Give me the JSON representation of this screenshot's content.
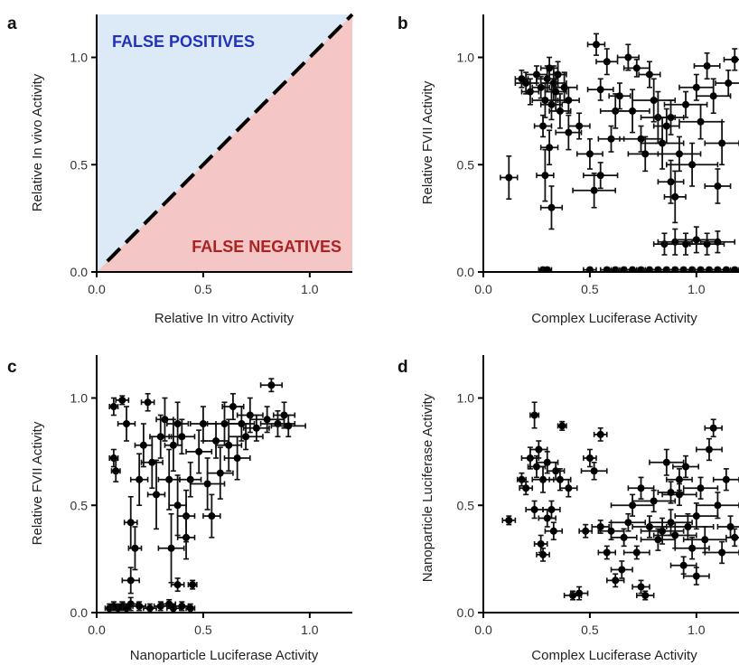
{
  "chart_data": [
    {
      "panel": "a",
      "type": "area",
      "xlabel": "Relative In vitro Activity",
      "ylabel": "Relative In vivo Activity",
      "xlim": [
        0,
        1.2
      ],
      "ylim": [
        0,
        1.2
      ],
      "xticks": [
        "0.0",
        "0.5",
        "1.0"
      ],
      "yticks": [
        "0.0",
        "0.5",
        "1.0"
      ],
      "line": {
        "style": "dashed",
        "x": [
          0.05,
          1.2
        ],
        "y": [
          0.05,
          1.2
        ],
        "color": "#000000"
      },
      "regions": [
        {
          "label": "FALSE POSITIVES",
          "fill": "#dce9f7",
          "text_color": "#2233bb",
          "side": "above-diagonal"
        },
        {
          "label": "FALSE NEGATIVES",
          "fill": "#f5c6c6",
          "text_color": "#aa2222",
          "side": "below-diagonal"
        }
      ]
    },
    {
      "panel": "b",
      "type": "scatter",
      "xlabel": "Complex Luciferase Activity",
      "ylabel": "Relative FVII Activity",
      "xlim": [
        0,
        1.2
      ],
      "ylim": [
        0,
        1.2
      ],
      "xticks": [
        "0.0",
        "0.5",
        "1.0"
      ],
      "yticks": [
        "0.0",
        "0.5",
        "1.0"
      ],
      "error_bars": true,
      "points": [
        [
          0.12,
          0.44,
          0.04,
          0.1
        ],
        [
          0.18,
          0.9,
          0.03,
          0.04
        ],
        [
          0.2,
          0.88,
          0.05,
          0.05
        ],
        [
          0.22,
          0.84,
          0.04,
          0.06
        ],
        [
          0.25,
          0.92,
          0.05,
          0.04
        ],
        [
          0.27,
          0.86,
          0.04,
          0.05
        ],
        [
          0.29,
          0.8,
          0.06,
          0.08
        ],
        [
          0.3,
          0.9,
          0.05,
          0.06
        ],
        [
          0.31,
          0.95,
          0.04,
          0.05
        ],
        [
          0.32,
          0.78,
          0.05,
          0.07
        ],
        [
          0.33,
          0.88,
          0.06,
          0.08
        ],
        [
          0.34,
          0.84,
          0.05,
          0.09
        ],
        [
          0.35,
          0.92,
          0.04,
          0.06
        ],
        [
          0.36,
          0.75,
          0.05,
          0.08
        ],
        [
          0.38,
          0.86,
          0.06,
          0.07
        ],
        [
          0.4,
          0.8,
          0.05,
          0.06
        ],
        [
          0.28,
          0.68,
          0.04,
          0.05
        ],
        [
          0.31,
          0.58,
          0.04,
          0.08
        ],
        [
          0.32,
          0.3,
          0.05,
          0.1
        ],
        [
          0.29,
          0.45,
          0.04,
          0.12
        ],
        [
          0.4,
          0.65,
          0.06,
          0.08
        ],
        [
          0.45,
          0.68,
          0.05,
          0.06
        ],
        [
          0.5,
          0.55,
          0.06,
          0.07
        ],
        [
          0.52,
          0.38,
          0.1,
          0.08
        ],
        [
          0.55,
          0.45,
          0.08,
          0.06
        ],
        [
          0.55,
          0.85,
          0.06,
          0.05
        ],
        [
          0.53,
          1.06,
          0.04,
          0.05
        ],
        [
          0.58,
          0.98,
          0.05,
          0.06
        ],
        [
          0.62,
          0.75,
          0.07,
          0.08
        ],
        [
          0.64,
          0.82,
          0.05,
          0.06
        ],
        [
          0.68,
          1.0,
          0.05,
          0.06
        ],
        [
          0.7,
          0.75,
          0.08,
          0.1
        ],
        [
          0.72,
          0.95,
          0.06,
          0.04
        ],
        [
          0.74,
          0.62,
          0.1,
          0.06
        ],
        [
          0.76,
          0.55,
          0.08,
          0.08
        ],
        [
          0.78,
          0.92,
          0.05,
          0.06
        ],
        [
          0.8,
          0.8,
          0.1,
          0.1
        ],
        [
          0.82,
          0.72,
          0.08,
          0.12
        ],
        [
          0.84,
          0.6,
          0.1,
          0.12
        ],
        [
          0.86,
          0.68,
          0.06,
          0.08
        ],
        [
          0.88,
          0.42,
          0.06,
          0.1
        ],
        [
          0.9,
          0.35,
          0.05,
          0.12
        ],
        [
          0.92,
          0.55,
          0.1,
          0.08
        ],
        [
          0.95,
          0.78,
          0.1,
          0.06
        ],
        [
          0.98,
          0.5,
          0.12,
          0.1
        ],
        [
          1.0,
          0.86,
          0.08,
          0.06
        ],
        [
          1.02,
          0.7,
          0.1,
          0.08
        ],
        [
          1.05,
          0.96,
          0.06,
          0.06
        ],
        [
          1.08,
          0.82,
          0.08,
          0.08
        ],
        [
          1.1,
          0.4,
          0.06,
          0.08
        ],
        [
          1.12,
          0.6,
          0.08,
          0.1
        ],
        [
          1.15,
          0.88,
          0.06,
          0.06
        ],
        [
          1.18,
          0.99,
          0.05,
          0.05
        ],
        [
          0.88,
          0.72,
          0.06,
          0.08
        ],
        [
          0.6,
          0.62,
          0.06,
          0.06
        ],
        [
          0.85,
          0.13,
          0.05,
          0.05
        ],
        [
          0.9,
          0.14,
          0.08,
          0.06
        ],
        [
          0.95,
          0.13,
          0.1,
          0.05
        ],
        [
          1.0,
          0.15,
          0.1,
          0.06
        ],
        [
          1.05,
          0.13,
          0.08,
          0.05
        ],
        [
          1.1,
          0.14,
          0.08,
          0.05
        ],
        [
          0.28,
          0.01,
          0.02,
          0.01
        ],
        [
          0.3,
          0.01,
          0.02,
          0.01
        ],
        [
          0.5,
          0.01,
          0.03,
          0.01
        ],
        [
          0.58,
          0.01,
          0.03,
          0.01
        ],
        [
          0.62,
          0.01,
          0.02,
          0.01
        ],
        [
          0.66,
          0.01,
          0.03,
          0.01
        ],
        [
          0.7,
          0.01,
          0.03,
          0.01
        ],
        [
          0.74,
          0.01,
          0.02,
          0.01
        ],
        [
          0.78,
          0.01,
          0.03,
          0.01
        ],
        [
          0.82,
          0.01,
          0.03,
          0.01
        ],
        [
          0.86,
          0.01,
          0.03,
          0.01
        ],
        [
          0.9,
          0.01,
          0.03,
          0.01
        ],
        [
          0.94,
          0.01,
          0.03,
          0.01
        ],
        [
          0.98,
          0.01,
          0.03,
          0.01
        ],
        [
          1.02,
          0.01,
          0.03,
          0.01
        ],
        [
          1.06,
          0.01,
          0.03,
          0.01
        ],
        [
          1.1,
          0.01,
          0.03,
          0.01
        ],
        [
          1.14,
          0.01,
          0.03,
          0.01
        ],
        [
          1.18,
          0.01,
          0.02,
          0.01
        ]
      ]
    },
    {
      "panel": "c",
      "type": "scatter",
      "xlabel": "Nanoparticle Luciferase Activity",
      "ylabel": "Relative FVII Activity",
      "xlim": [
        0,
        1.2
      ],
      "ylim": [
        0,
        1.2
      ],
      "xticks": [
        "0.0",
        "0.5",
        "1.0"
      ],
      "yticks": [
        "0.0",
        "0.5",
        "1.0"
      ],
      "error_bars": true,
      "points": [
        [
          0.08,
          0.96,
          0.02,
          0.04
        ],
        [
          0.08,
          0.72,
          0.02,
          0.04
        ],
        [
          0.09,
          0.66,
          0.02,
          0.05
        ],
        [
          0.12,
          0.99,
          0.03,
          0.02
        ],
        [
          0.14,
          0.88,
          0.04,
          0.08
        ],
        [
          0.16,
          0.42,
          0.03,
          0.12
        ],
        [
          0.18,
          0.3,
          0.03,
          0.1
        ],
        [
          0.16,
          0.15,
          0.04,
          0.06
        ],
        [
          0.2,
          0.62,
          0.04,
          0.12
        ],
        [
          0.22,
          0.78,
          0.04,
          0.1
        ],
        [
          0.24,
          0.98,
          0.03,
          0.04
        ],
        [
          0.26,
          0.7,
          0.05,
          0.12
        ],
        [
          0.28,
          0.55,
          0.04,
          0.16
        ],
        [
          0.3,
          0.82,
          0.05,
          0.1
        ],
        [
          0.32,
          0.9,
          0.04,
          0.1
        ],
        [
          0.34,
          0.62,
          0.05,
          0.14
        ],
        [
          0.35,
          0.3,
          0.06,
          0.16
        ],
        [
          0.36,
          0.78,
          0.04,
          0.12
        ],
        [
          0.38,
          0.88,
          0.05,
          0.1
        ],
        [
          0.38,
          0.5,
          0.04,
          0.14
        ],
        [
          0.4,
          0.82,
          0.06,
          0.08
        ],
        [
          0.42,
          0.45,
          0.04,
          0.12
        ],
        [
          0.42,
          0.35,
          0.04,
          0.1
        ],
        [
          0.44,
          0.62,
          0.05,
          0.08
        ],
        [
          0.45,
          0.13,
          0.02,
          0.02
        ],
        [
          0.48,
          0.75,
          0.06,
          0.1
        ],
        [
          0.5,
          0.88,
          0.06,
          0.08
        ],
        [
          0.52,
          0.6,
          0.08,
          0.12
        ],
        [
          0.54,
          0.45,
          0.04,
          0.1
        ],
        [
          0.56,
          0.8,
          0.06,
          0.08
        ],
        [
          0.58,
          0.65,
          0.06,
          0.12
        ],
        [
          0.6,
          0.88,
          0.08,
          0.1
        ],
        [
          0.62,
          0.78,
          0.06,
          0.12
        ],
        [
          0.64,
          0.96,
          0.05,
          0.06
        ],
        [
          0.66,
          0.72,
          0.06,
          0.1
        ],
        [
          0.68,
          0.88,
          0.06,
          0.08
        ],
        [
          0.7,
          0.82,
          0.08,
          0.06
        ],
        [
          0.72,
          0.92,
          0.06,
          0.08
        ],
        [
          0.75,
          0.86,
          0.06,
          0.06
        ],
        [
          0.8,
          0.9,
          0.08,
          0.06
        ],
        [
          0.82,
          1.06,
          0.05,
          0.03
        ],
        [
          0.85,
          0.88,
          0.08,
          0.06
        ],
        [
          0.88,
          0.92,
          0.05,
          0.06
        ],
        [
          0.9,
          0.87,
          0.08,
          0.05
        ],
        [
          0.06,
          0.02,
          0.02,
          0.02
        ],
        [
          0.08,
          0.03,
          0.02,
          0.02
        ],
        [
          0.1,
          0.02,
          0.03,
          0.02
        ],
        [
          0.12,
          0.03,
          0.02,
          0.02
        ],
        [
          0.14,
          0.02,
          0.02,
          0.02
        ],
        [
          0.16,
          0.04,
          0.03,
          0.03
        ],
        [
          0.2,
          0.03,
          0.03,
          0.02
        ],
        [
          0.25,
          0.02,
          0.03,
          0.02
        ],
        [
          0.3,
          0.03,
          0.03,
          0.02
        ],
        [
          0.34,
          0.04,
          0.03,
          0.02
        ],
        [
          0.36,
          0.02,
          0.03,
          0.02
        ],
        [
          0.4,
          0.03,
          0.03,
          0.02
        ],
        [
          0.44,
          0.02,
          0.02,
          0.02
        ],
        [
          0.38,
          0.13,
          0.03,
          0.03
        ]
      ]
    },
    {
      "panel": "d",
      "type": "scatter",
      "xlabel": "Complex Luciferase Activity",
      "ylabel": "Nanoparticle Luciferase Activity",
      "xlim": [
        0,
        1.2
      ],
      "ylim": [
        0,
        1.2
      ],
      "xticks": [
        "0.0",
        "0.5",
        "1.0"
      ],
      "yticks": [
        "0.0",
        "0.5",
        "1.0"
      ],
      "error_bars": true,
      "points": [
        [
          0.12,
          0.43,
          0.03,
          0.02
        ],
        [
          0.18,
          0.62,
          0.02,
          0.03
        ],
        [
          0.2,
          0.58,
          0.03,
          0.03
        ],
        [
          0.22,
          0.72,
          0.04,
          0.05
        ],
        [
          0.24,
          0.92,
          0.02,
          0.06
        ],
        [
          0.25,
          0.68,
          0.04,
          0.05
        ],
        [
          0.26,
          0.76,
          0.04,
          0.04
        ],
        [
          0.27,
          0.32,
          0.03,
          0.04
        ],
        [
          0.28,
          0.27,
          0.03,
          0.03
        ],
        [
          0.28,
          0.62,
          0.05,
          0.06
        ],
        [
          0.3,
          0.7,
          0.05,
          0.05
        ],
        [
          0.32,
          0.48,
          0.04,
          0.04
        ],
        [
          0.33,
          0.38,
          0.04,
          0.04
        ],
        [
          0.34,
          0.66,
          0.04,
          0.04
        ],
        [
          0.36,
          0.62,
          0.05,
          0.05
        ],
        [
          0.37,
          0.87,
          0.02,
          0.02
        ],
        [
          0.4,
          0.58,
          0.04,
          0.04
        ],
        [
          0.42,
          0.08,
          0.04,
          0.02
        ],
        [
          0.45,
          0.09,
          0.04,
          0.03
        ],
        [
          0.48,
          0.38,
          0.03,
          0.03
        ],
        [
          0.5,
          0.72,
          0.03,
          0.04
        ],
        [
          0.52,
          0.66,
          0.06,
          0.04
        ],
        [
          0.55,
          0.83,
          0.03,
          0.03
        ],
        [
          0.55,
          0.4,
          0.04,
          0.03
        ],
        [
          0.58,
          0.28,
          0.04,
          0.03
        ],
        [
          0.6,
          0.38,
          0.06,
          0.04
        ],
        [
          0.62,
          0.15,
          0.04,
          0.03
        ],
        [
          0.65,
          0.2,
          0.05,
          0.04
        ],
        [
          0.68,
          0.42,
          0.08,
          0.04
        ],
        [
          0.7,
          0.5,
          0.1,
          0.05
        ],
        [
          0.72,
          0.28,
          0.06,
          0.03
        ],
        [
          0.74,
          0.12,
          0.04,
          0.03
        ],
        [
          0.76,
          0.08,
          0.04,
          0.02
        ],
        [
          0.78,
          0.4,
          0.08,
          0.05
        ],
        [
          0.8,
          0.52,
          0.1,
          0.05
        ],
        [
          0.82,
          0.34,
          0.08,
          0.05
        ],
        [
          0.84,
          0.38,
          0.1,
          0.06
        ],
        [
          0.86,
          0.7,
          0.08,
          0.06
        ],
        [
          0.88,
          0.42,
          0.1,
          0.06
        ],
        [
          0.9,
          0.36,
          0.1,
          0.06
        ],
        [
          0.92,
          0.55,
          0.08,
          0.05
        ],
        [
          0.94,
          0.22,
          0.06,
          0.04
        ],
        [
          0.95,
          0.68,
          0.06,
          0.05
        ],
        [
          0.96,
          0.4,
          0.12,
          0.06
        ],
        [
          0.98,
          0.3,
          0.08,
          0.05
        ],
        [
          1.0,
          0.45,
          0.1,
          0.06
        ],
        [
          1.0,
          0.17,
          0.06,
          0.04
        ],
        [
          1.02,
          0.58,
          0.08,
          0.05
        ],
        [
          1.04,
          0.34,
          0.1,
          0.06
        ],
        [
          1.06,
          0.76,
          0.06,
          0.05
        ],
        [
          1.08,
          0.86,
          0.04,
          0.04
        ],
        [
          1.1,
          0.5,
          0.1,
          0.06
        ],
        [
          1.12,
          0.28,
          0.08,
          0.05
        ],
        [
          1.14,
          0.62,
          0.06,
          0.05
        ],
        [
          1.16,
          0.4,
          0.06,
          0.05
        ],
        [
          1.18,
          0.35,
          0.04,
          0.04
        ],
        [
          0.24,
          0.48,
          0.04,
          0.04
        ],
        [
          0.3,
          0.44,
          0.04,
          0.04
        ],
        [
          0.66,
          0.35,
          0.06,
          0.04
        ],
        [
          0.88,
          0.56,
          0.06,
          0.05
        ],
        [
          0.74,
          0.58,
          0.06,
          0.05
        ],
        [
          0.92,
          0.62,
          0.06,
          0.05
        ]
      ]
    }
  ]
}
